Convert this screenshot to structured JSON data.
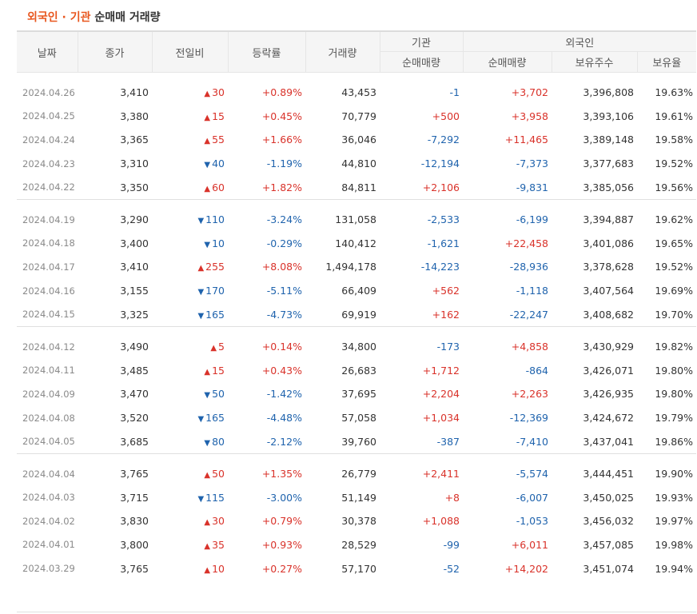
{
  "title": {
    "part1": "외국인 · 기관",
    "part2": "순매매 거래량"
  },
  "colors": {
    "up": "#d9322a",
    "down": "#1f63ad",
    "title_accent": "#e8571f"
  },
  "icons": {
    "up": "▲",
    "down": "▼"
  },
  "header": {
    "date": "날짜",
    "close": "종가",
    "change": "전일비",
    "rate": "등락률",
    "volume": "거래량",
    "inst_group": "기관",
    "inst_net": "순매매량",
    "foreign_group": "외국인",
    "foreign_net": "순매매량",
    "foreign_holdings": "보유주수",
    "foreign_ratio": "보유율"
  },
  "rows": [
    {
      "date": "2024.04.26",
      "close": "3,410",
      "dir": "up",
      "change": "30",
      "rate": "+0.89%",
      "volume": "43,453",
      "inst": "-1",
      "foreign": "+3,702",
      "holdings": "3,396,808",
      "ratio": "19.63%"
    },
    {
      "date": "2024.04.25",
      "close": "3,380",
      "dir": "up",
      "change": "15",
      "rate": "+0.45%",
      "volume": "70,779",
      "inst": "+500",
      "foreign": "+3,958",
      "holdings": "3,393,106",
      "ratio": "19.61%"
    },
    {
      "date": "2024.04.24",
      "close": "3,365",
      "dir": "up",
      "change": "55",
      "rate": "+1.66%",
      "volume": "36,046",
      "inst": "-7,292",
      "foreign": "+11,465",
      "holdings": "3,389,148",
      "ratio": "19.58%"
    },
    {
      "date": "2024.04.23",
      "close": "3,310",
      "dir": "down",
      "change": "40",
      "rate": "-1.19%",
      "volume": "44,810",
      "inst": "-12,194",
      "foreign": "-7,373",
      "holdings": "3,377,683",
      "ratio": "19.52%"
    },
    {
      "date": "2024.04.22",
      "close": "3,350",
      "dir": "up",
      "change": "60",
      "rate": "+1.82%",
      "volume": "84,811",
      "inst": "+2,106",
      "foreign": "-9,831",
      "holdings": "3,385,056",
      "ratio": "19.56%"
    },
    {
      "date": "2024.04.19",
      "close": "3,290",
      "dir": "down",
      "change": "110",
      "rate": "-3.24%",
      "volume": "131,058",
      "inst": "-2,533",
      "foreign": "-6,199",
      "holdings": "3,394,887",
      "ratio": "19.62%"
    },
    {
      "date": "2024.04.18",
      "close": "3,400",
      "dir": "down",
      "change": "10",
      "rate": "-0.29%",
      "volume": "140,412",
      "inst": "-1,621",
      "foreign": "+22,458",
      "holdings": "3,401,086",
      "ratio": "19.65%"
    },
    {
      "date": "2024.04.17",
      "close": "3,410",
      "dir": "up",
      "change": "255",
      "rate": "+8.08%",
      "volume": "1,494,178",
      "inst": "-14,223",
      "foreign": "-28,936",
      "holdings": "3,378,628",
      "ratio": "19.52%"
    },
    {
      "date": "2024.04.16",
      "close": "3,155",
      "dir": "down",
      "change": "170",
      "rate": "-5.11%",
      "volume": "66,409",
      "inst": "+562",
      "foreign": "-1,118",
      "holdings": "3,407,564",
      "ratio": "19.69%"
    },
    {
      "date": "2024.04.15",
      "close": "3,325",
      "dir": "down",
      "change": "165",
      "rate": "-4.73%",
      "volume": "69,919",
      "inst": "+162",
      "foreign": "-22,247",
      "holdings": "3,408,682",
      "ratio": "19.70%"
    },
    {
      "date": "2024.04.12",
      "close": "3,490",
      "dir": "up",
      "change": "5",
      "rate": "+0.14%",
      "volume": "34,800",
      "inst": "-173",
      "foreign": "+4,858",
      "holdings": "3,430,929",
      "ratio": "19.82%"
    },
    {
      "date": "2024.04.11",
      "close": "3,485",
      "dir": "up",
      "change": "15",
      "rate": "+0.43%",
      "volume": "26,683",
      "inst": "+1,712",
      "foreign": "-864",
      "holdings": "3,426,071",
      "ratio": "19.80%"
    },
    {
      "date": "2024.04.09",
      "close": "3,470",
      "dir": "down",
      "change": "50",
      "rate": "-1.42%",
      "volume": "37,695",
      "inst": "+2,204",
      "foreign": "+2,263",
      "holdings": "3,426,935",
      "ratio": "19.80%"
    },
    {
      "date": "2024.04.08",
      "close": "3,520",
      "dir": "down",
      "change": "165",
      "rate": "-4.48%",
      "volume": "57,058",
      "inst": "+1,034",
      "foreign": "-12,369",
      "holdings": "3,424,672",
      "ratio": "19.79%"
    },
    {
      "date": "2024.04.05",
      "close": "3,685",
      "dir": "down",
      "change": "80",
      "rate": "-2.12%",
      "volume": "39,760",
      "inst": "-387",
      "foreign": "-7,410",
      "holdings": "3,437,041",
      "ratio": "19.86%"
    },
    {
      "date": "2024.04.04",
      "close": "3,765",
      "dir": "up",
      "change": "50",
      "rate": "+1.35%",
      "volume": "26,779",
      "inst": "+2,411",
      "foreign": "-5,574",
      "holdings": "3,444,451",
      "ratio": "19.90%"
    },
    {
      "date": "2024.04.03",
      "close": "3,715",
      "dir": "down",
      "change": "115",
      "rate": "-3.00%",
      "volume": "51,149",
      "inst": "+8",
      "foreign": "-6,007",
      "holdings": "3,450,025",
      "ratio": "19.93%"
    },
    {
      "date": "2024.04.02",
      "close": "3,830",
      "dir": "up",
      "change": "30",
      "rate": "+0.79%",
      "volume": "30,378",
      "inst": "+1,088",
      "foreign": "-1,053",
      "holdings": "3,456,032",
      "ratio": "19.97%"
    },
    {
      "date": "2024.04.01",
      "close": "3,800",
      "dir": "up",
      "change": "35",
      "rate": "+0.93%",
      "volume": "28,529",
      "inst": "-99",
      "foreign": "+6,011",
      "holdings": "3,457,085",
      "ratio": "19.98%"
    },
    {
      "date": "2024.03.29",
      "close": "3,765",
      "dir": "up",
      "change": "10",
      "rate": "+0.27%",
      "volume": "57,170",
      "inst": "-52",
      "foreign": "+14,202",
      "holdings": "3,451,074",
      "ratio": "19.94%"
    }
  ]
}
